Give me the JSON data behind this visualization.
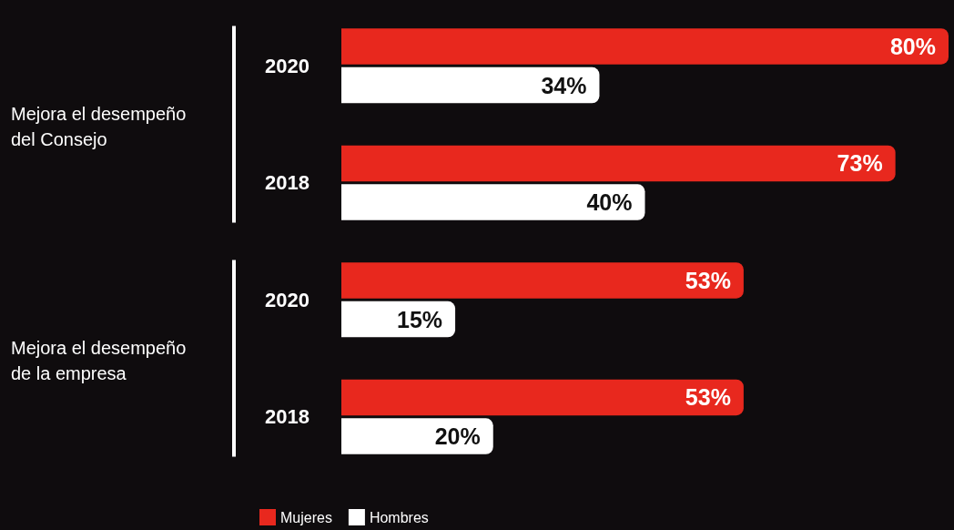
{
  "chart_data": {
    "type": "bar",
    "orientation": "horizontal",
    "categories": [
      "2020",
      "2018",
      "2020",
      "2018"
    ],
    "series": [
      {
        "name": "Mujeres",
        "color": "#e8281e",
        "values": [
          80,
          73,
          53,
          53
        ],
        "value_labels": [
          "80%",
          "73%",
          "53%",
          "53%"
        ]
      },
      {
        "name": "Hombres",
        "color": "#ffffff",
        "values": [
          34,
          40,
          15,
          20
        ],
        "value_labels": [
          "34%",
          "40%",
          "15%",
          "20%"
        ]
      }
    ],
    "annotations": [
      "Mejora el desempeño del Consejo",
      "Mejora el desempeño de la empresa"
    ],
    "legend": "bottom"
  }
}
